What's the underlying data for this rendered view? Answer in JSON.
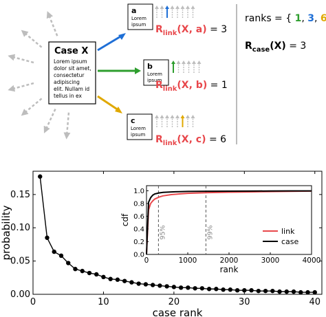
{
  "colors": {
    "blue": "#1f6fd6",
    "green": "#2e9e2e",
    "gold": "#e0a800",
    "red": "#e8474b",
    "gray": "#bdbdbd",
    "black": "#000000"
  },
  "schematic": {
    "case_box": {
      "title": "Case X",
      "body_lines": [
        "Lorem ipsum",
        "dolor sit amet,",
        "consectetur",
        "adipiscing",
        "elit. Nullam id",
        "tellus in ex"
      ]
    },
    "links": [
      {
        "letter": "a",
        "body_lines": [
          "Lorem",
          "ipsum"
        ],
        "r_main": "R",
        "r_sub": "link",
        "r_args": "(X, a)",
        "r_value": "= 3",
        "highlight_index": 3,
        "color_key": "blue"
      },
      {
        "letter": "b",
        "body_lines": [
          "Lorem",
          "ipsum"
        ],
        "r_main": "R",
        "r_sub": "link",
        "r_args": "(X, b)",
        "r_value": "= 1",
        "highlight_index": 1,
        "color_key": "green"
      },
      {
        "letter": "c",
        "body_lines": [
          "Lorem",
          "ipsum"
        ],
        "r_main": "R",
        "r_sub": "link",
        "r_args": "(X, c)",
        "r_value": "= 6",
        "highlight_index": 6,
        "color_key": "gold"
      }
    ],
    "ranks_prefix": "ranks = {",
    "ranks_values": [
      "1",
      "3",
      "6"
    ],
    "ranks_suffix": "}",
    "rcase_main": "R",
    "rcase_sub": "case",
    "rcase_args": "(X)",
    "rcase_value": "= 3"
  },
  "chart_data": [
    {
      "type": "line",
      "markers": true,
      "x": [
        1,
        2,
        3,
        4,
        5,
        6,
        7,
        8,
        9,
        10,
        11,
        12,
        13,
        14,
        15,
        16,
        17,
        18,
        19,
        20,
        21,
        22,
        23,
        24,
        25,
        26,
        27,
        28,
        29,
        30,
        31,
        32,
        33,
        34,
        35,
        36,
        37,
        38,
        39,
        40
      ],
      "values": [
        0.177,
        0.085,
        0.064,
        0.058,
        0.047,
        0.038,
        0.035,
        0.032,
        0.03,
        0.026,
        0.023,
        0.022,
        0.02,
        0.018,
        0.016,
        0.015,
        0.014,
        0.013,
        0.012,
        0.011,
        0.01,
        0.01,
        0.009,
        0.009,
        0.008,
        0.008,
        0.007,
        0.007,
        0.006,
        0.006,
        0.006,
        0.005,
        0.005,
        0.005,
        0.004,
        0.004,
        0.004,
        0.003,
        0.003,
        0.003
      ],
      "xlabel": "case rank",
      "ylabel": "probability",
      "xlim": [
        0,
        41
      ],
      "ylim": [
        0,
        0.185
      ],
      "xticks": [
        "0",
        "10",
        "20",
        "30",
        "40"
      ],
      "yticks": [
        "0.00",
        "0.05",
        "0.10",
        "0.15"
      ],
      "color": "#000000"
    },
    {
      "type": "line",
      "x": [
        0,
        50,
        100,
        150,
        200,
        300,
        400,
        600,
        800,
        1000,
        1500,
        2000,
        2500,
        3000,
        3500,
        4000
      ],
      "series": [
        {
          "name": "link",
          "color": "#e8474b",
          "values": [
            0,
            0.7,
            0.8,
            0.84,
            0.87,
            0.9,
            0.92,
            0.94,
            0.95,
            0.96,
            0.97,
            0.977,
            0.982,
            0.987,
            0.991,
            0.995
          ]
        },
        {
          "name": "case",
          "color": "#000000",
          "values": [
            0,
            0.82,
            0.89,
            0.93,
            0.95,
            0.965,
            0.975,
            0.982,
            0.986,
            0.989,
            0.992,
            0.994,
            0.995,
            0.996,
            0.997,
            0.998
          ]
        }
      ],
      "xlabel": "rank",
      "ylabel": "cdf",
      "xlim": [
        0,
        4000
      ],
      "ylim": [
        0,
        1.08
      ],
      "xticks": [
        "0",
        "1000",
        "2000",
        "3000",
        "4000"
      ],
      "yticks": [
        "0.0",
        "0.2",
        "0.4",
        "0.6",
        "0.8",
        "1.0"
      ],
      "vlines": [
        {
          "x": 290,
          "label": "95%"
        },
        {
          "x": 1440,
          "label": "99%"
        }
      ],
      "legend_placement": "bottom-right"
    }
  ]
}
